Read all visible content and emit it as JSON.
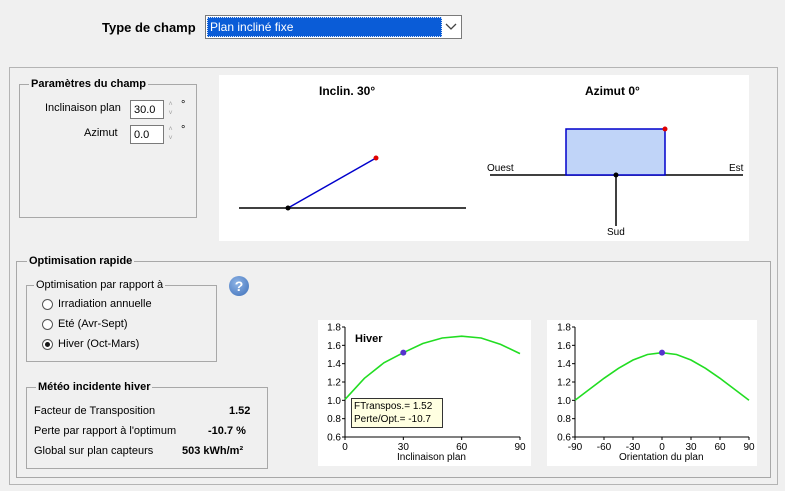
{
  "header": {
    "field_type_label": "Type de champ",
    "field_type_value": "Plan incliné fixe"
  },
  "params": {
    "title": "Paramètres du champ",
    "tilt_label": "Inclinaison plan",
    "tilt_value": "30.0",
    "azimuth_label": "Azimut",
    "azimuth_value": "0.0",
    "unit": "°"
  },
  "diagram": {
    "tilt_title": "Inclin. 30°",
    "azimuth_title": "Azimut 0°",
    "west": "Ouest",
    "east": "Est",
    "south": "Sud"
  },
  "optimization": {
    "title": "Optimisation rapide",
    "subgroup_title": "Optimisation par rapport à",
    "options": [
      "Irradiation annuelle",
      "Eté (Avr-Sept)",
      "Hiver (Oct-Mars)"
    ],
    "selected_index": 2,
    "help_icon": "?"
  },
  "meteo": {
    "title": "Météo incidente hiver",
    "rows": [
      {
        "label": "Facteur de Transposition",
        "value": "1.52"
      },
      {
        "label": "Perte par rapport à l'optimum",
        "value": "-10.7 %"
      },
      {
        "label": "Global sur plan capteurs",
        "value": "503 kWh/m²"
      }
    ]
  },
  "colors": {
    "curve": "#22dd22",
    "marker": "#5533cc",
    "plane_line": "#0000cc",
    "plane_fill": "#c0d4f8",
    "selection": "#0a5cd7"
  },
  "chart_data": [
    {
      "type": "line",
      "title": "Hiver",
      "xlabel": "Inclinaison plan",
      "ylabel": "",
      "xlim": [
        0,
        90
      ],
      "ylim": [
        0.6,
        1.8
      ],
      "xticks": [
        0,
        30,
        60,
        90
      ],
      "yticks": [
        0.6,
        0.8,
        1.0,
        1.2,
        1.4,
        1.6,
        1.8
      ],
      "x": [
        0,
        10,
        20,
        30,
        40,
        50,
        60,
        70,
        80,
        90
      ],
      "y": [
        1.01,
        1.24,
        1.41,
        1.52,
        1.62,
        1.68,
        1.7,
        1.68,
        1.61,
        1.51
      ],
      "marker": {
        "x": 30,
        "y": 1.52
      },
      "annotation": [
        "FTranspos.= 1.52",
        "Perte/Opt.= -10.7"
      ]
    },
    {
      "type": "line",
      "title": "",
      "xlabel": "Orientation du plan",
      "ylabel": "",
      "xlim": [
        -90,
        90
      ],
      "ylim": [
        0.6,
        1.8
      ],
      "xticks": [
        -90,
        -60,
        -30,
        0,
        30,
        60,
        90
      ],
      "yticks": [
        0.6,
        0.8,
        1.0,
        1.2,
        1.4,
        1.6,
        1.8
      ],
      "x": [
        -90,
        -75,
        -60,
        -45,
        -30,
        -15,
        0,
        15,
        30,
        45,
        60,
        75,
        90
      ],
      "y": [
        1.0,
        1.12,
        1.24,
        1.35,
        1.44,
        1.5,
        1.52,
        1.5,
        1.44,
        1.35,
        1.24,
        1.12,
        1.0
      ],
      "marker": {
        "x": 0,
        "y": 1.52
      }
    }
  ]
}
